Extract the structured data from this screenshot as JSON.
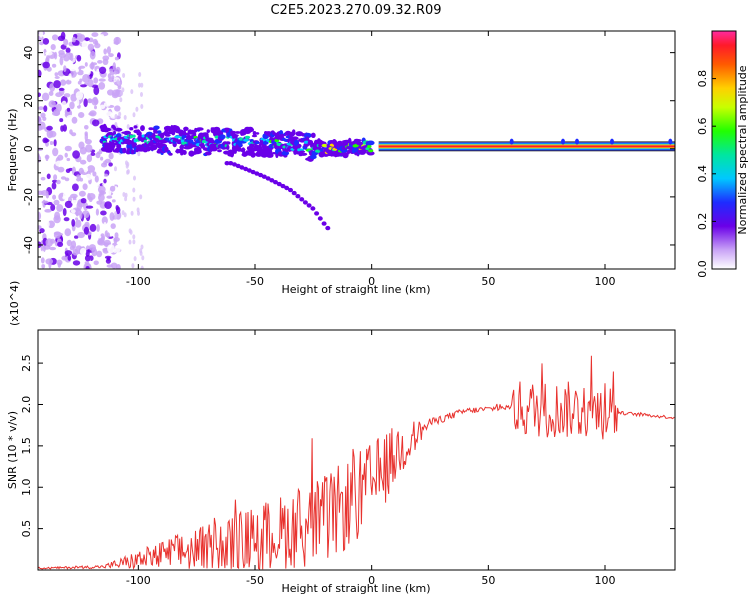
{
  "title": "C2E5.2023.270.09.32.R09",
  "chart_data": [
    {
      "type": "heatmap",
      "id": "spectrogram",
      "xlabel": "Height of straight line (km)",
      "ylabel": "Frequency (Hz)",
      "xlim": [
        -143,
        130
      ],
      "ylim": [
        -50,
        49
      ],
      "xticks": [
        -100,
        -50,
        0,
        50,
        100
      ],
      "yticks": [
        -40,
        -20,
        0,
        20,
        40
      ],
      "colorbar": {
        "label": "Normalized spectral amplitude",
        "range": [
          0,
          1
        ],
        "ticks": [
          0.0,
          0.2,
          0.4,
          0.6,
          0.8
        ]
      },
      "main_band": [
        {
          "x": -112,
          "f": 4,
          "amp": 0.45
        },
        {
          "x": -80,
          "f": 3,
          "amp": 0.5
        },
        {
          "x": -50,
          "f": 3,
          "amp": 0.5
        },
        {
          "x": -30,
          "f": 1,
          "amp": 0.5
        },
        {
          "x": -15,
          "f": 0,
          "amp": 0.7
        },
        {
          "x": 0,
          "f": 1,
          "amp": 0.7
        },
        {
          "x": 5,
          "f": 1,
          "amp": 0.85
        },
        {
          "x": 130,
          "f": 1,
          "amp": 0.85
        }
      ],
      "secondary_trace": [
        {
          "x": -60,
          "f": -6
        },
        {
          "x": -45,
          "f": -12
        },
        {
          "x": -35,
          "f": -17
        },
        {
          "x": -25,
          "f": -25
        },
        {
          "x": -19,
          "f": -33
        }
      ]
    },
    {
      "type": "line",
      "id": "snr",
      "xlabel": "Height of straight line (km)",
      "ylabel": "SNR (10 * v/v)",
      "y_scale_label": "(x10^4)",
      "xlim": [
        -143,
        130
      ],
      "ylim": [
        0,
        2.9
      ],
      "xticks": [
        -100,
        -50,
        0,
        50,
        100
      ],
      "yticks": [
        0.5,
        1.0,
        1.5,
        2.0,
        2.5
      ],
      "ytick_labels": [
        "0.5",
        "1.0",
        "1.5",
        "2.0",
        "2.5"
      ],
      "color": "#e8322e",
      "envelope": [
        {
          "x": -143,
          "base": 0.02,
          "noise": 0.01
        },
        {
          "x": -115,
          "base": 0.04,
          "noise": 0.02
        },
        {
          "x": -100,
          "base": 0.12,
          "noise": 0.12
        },
        {
          "x": -80,
          "base": 0.22,
          "noise": 0.25
        },
        {
          "x": -60,
          "base": 0.32,
          "noise": 0.35
        },
        {
          "x": -40,
          "base": 0.45,
          "noise": 0.45
        },
        {
          "x": -20,
          "base": 0.6,
          "noise": 0.55
        },
        {
          "x": -5,
          "base": 0.9,
          "noise": 0.55
        },
        {
          "x": 5,
          "base": 1.2,
          "noise": 0.45
        },
        {
          "x": 12,
          "base": 1.45,
          "noise": 0.35
        },
        {
          "x": 25,
          "base": 1.78,
          "noise": 0.05
        },
        {
          "x": 40,
          "base": 1.92,
          "noise": 0.04
        },
        {
          "x": 60,
          "base": 1.97,
          "noise": 0.03
        },
        {
          "x": 62,
          "base": 1.95,
          "noise": 0.35
        },
        {
          "x": 105,
          "base": 1.92,
          "noise": 0.35
        },
        {
          "x": 106,
          "base": 1.9,
          "noise": 0.02
        },
        {
          "x": 130,
          "base": 1.84,
          "noise": 0.02
        }
      ]
    }
  ]
}
